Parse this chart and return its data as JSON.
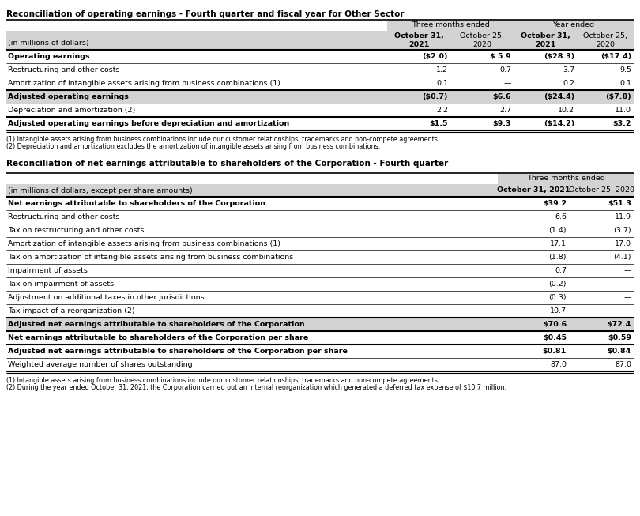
{
  "table1_title": "Reconciliation of operating earnings - Fourth quarter and fiscal year for Other Sector",
  "table1_header_group1": "Three months ended",
  "table1_header_group2": "Year ended",
  "table1_col_headers": [
    "(in millions of dollars)",
    "October 31,\n2021",
    "October 25,\n2020",
    "October 31,\n2021",
    "October 25,\n2020"
  ],
  "table1_col_bold": [
    false,
    true,
    false,
    true,
    false
  ],
  "table1_rows": [
    {
      "label": "Operating earnings",
      "v1": "($2.0)",
      "v2": "$ 5.9",
      "v3": "($28.3)",
      "v4": "($17.4)",
      "bold": true,
      "shade": false,
      "line_above": 1.5
    },
    {
      "label": "Restructuring and other costs",
      "v1": "1.2",
      "v2": "0.7",
      "v3": "3.7",
      "v4": "9.5",
      "bold": false,
      "shade": false,
      "line_above": 0.5
    },
    {
      "label": "Amortization of intangible assets arising from business combinations (1)",
      "v1": "0.1",
      "v2": "—",
      "v3": "0.2",
      "v4": "0.1",
      "bold": false,
      "shade": false,
      "line_above": 0.5
    },
    {
      "label": "Adjusted operating earnings",
      "v1": "($0.7)",
      "v2": "$6.6",
      "v3": "($24.4)",
      "v4": "($7.8)",
      "bold": true,
      "shade": true,
      "line_above": 1.5
    },
    {
      "label": "Depreciation and amortization (2)",
      "v1": "2.2",
      "v2": "2.7",
      "v3": "10.2",
      "v4": "11.0",
      "bold": false,
      "shade": false,
      "line_above": 0.5
    },
    {
      "label": "Adjusted operating earnings before depreciation and amortization",
      "v1": "$1.5",
      "v2": "$9.3",
      "v3": "($14.2)",
      "v4": "$3.2",
      "bold": true,
      "shade": false,
      "line_above": 1.5
    }
  ],
  "table1_last_line": 1.5,
  "table1_footnotes": [
    "(1) Intangible assets arising from business combinations include our customer relationships, trademarks and non-compete agreements.",
    "(2) Depreciation and amortization excludes the amortization of intangible assets arising from business combinations."
  ],
  "table2_title": "Reconciliation of net earnings attributable to shareholders of the Corporation - Fourth quarter",
  "table2_header_group": "Three months ended",
  "table2_col_headers": [
    "(in millions of dollars, except per share amounts)",
    "October 31, 2021",
    "October 25, 2020"
  ],
  "table2_col_bold": [
    false,
    true,
    false
  ],
  "table2_rows": [
    {
      "label": "Net earnings attributable to shareholders of the Corporation",
      "v1": "$39.2",
      "v2": "$51.3",
      "bold": true,
      "shade": false,
      "line_above": 1.5
    },
    {
      "label": "Restructuring and other costs",
      "v1": "6.6",
      "v2": "11.9",
      "bold": false,
      "shade": false,
      "line_above": 0.5
    },
    {
      "label": "Tax on restructuring and other costs",
      "v1": "(1.4)",
      "v2": "(3.7)",
      "bold": false,
      "shade": false,
      "line_above": 0.5
    },
    {
      "label": "Amortization of intangible assets arising from business combinations (1)",
      "v1": "17.1",
      "v2": "17.0",
      "bold": false,
      "shade": false,
      "line_above": 0.5
    },
    {
      "label": "Tax on amortization of intangible assets arising from business combinations",
      "v1": "(1.8)",
      "v2": "(4.1)",
      "bold": false,
      "shade": false,
      "line_above": 0.5
    },
    {
      "label": "Impairment of assets",
      "v1": "0.7",
      "v2": "—",
      "bold": false,
      "shade": false,
      "line_above": 0.5
    },
    {
      "label": "Tax on impairment of assets",
      "v1": "(0.2)",
      "v2": "—",
      "bold": false,
      "shade": false,
      "line_above": 0.5
    },
    {
      "label": "Adjustment on additional taxes in other jurisdictions",
      "v1": "(0.3)",
      "v2": "—",
      "bold": false,
      "shade": false,
      "line_above": 0.5
    },
    {
      "label": "Tax impact of a reorganization (2)",
      "v1": "10.7",
      "v2": "—",
      "bold": false,
      "shade": false,
      "line_above": 0.5
    },
    {
      "label": "Adjusted net earnings attributable to shareholders of the Corporation",
      "v1": "$70.6",
      "v2": "$72.4",
      "bold": true,
      "shade": true,
      "line_above": 1.5
    },
    {
      "label": "Net earnings attributable to shareholders of the Corporation per share",
      "v1": "$0.45",
      "v2": "$0.59",
      "bold": true,
      "shade": false,
      "line_above": 1.5
    },
    {
      "label": "Adjusted net earnings attributable to shareholders of the Corporation per share",
      "v1": "$0.81",
      "v2": "$0.84",
      "bold": true,
      "shade": false,
      "line_above": 1.5
    },
    {
      "label": "Weighted average number of shares outstanding",
      "v1": "87.0",
      "v2": "87.0",
      "bold": false,
      "shade": false,
      "line_above": 0.5
    }
  ],
  "table2_last_line": 1.5,
  "table2_footnotes": [
    "(1) Intangible assets arising from business combinations include our customer relationships, trademarks and non-compete agreements.",
    "(2) During the year ended October 31, 2021, the Corporation carried out an internal reorganization which generated a deferred tax expense of $10.7 million."
  ],
  "color_header_bg": "#d3d3d3",
  "color_shade_bg": "#d3d3d3",
  "font_size_title": 7.5,
  "font_size_body": 6.8,
  "font_size_footnote": 5.8
}
